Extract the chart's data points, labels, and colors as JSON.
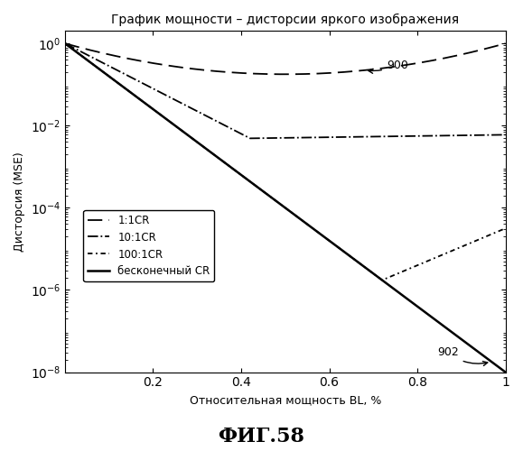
{
  "title": "График мощности – дисторсии яркого изображения",
  "xlabel": "Относительная мощность BL, %",
  "ylabel": "Дисторсия (MSE)",
  "figsize": [
    5.79,
    5.0
  ],
  "dpi": 100,
  "legend_entries": [
    "1:1CR",
    "10:1CR",
    "100:1CR",
    "бесконечный CR"
  ],
  "annotation_900": "900",
  "annotation_902": "902",
  "fig_label": "ФИГ.58",
  "background_color": "#ffffff"
}
